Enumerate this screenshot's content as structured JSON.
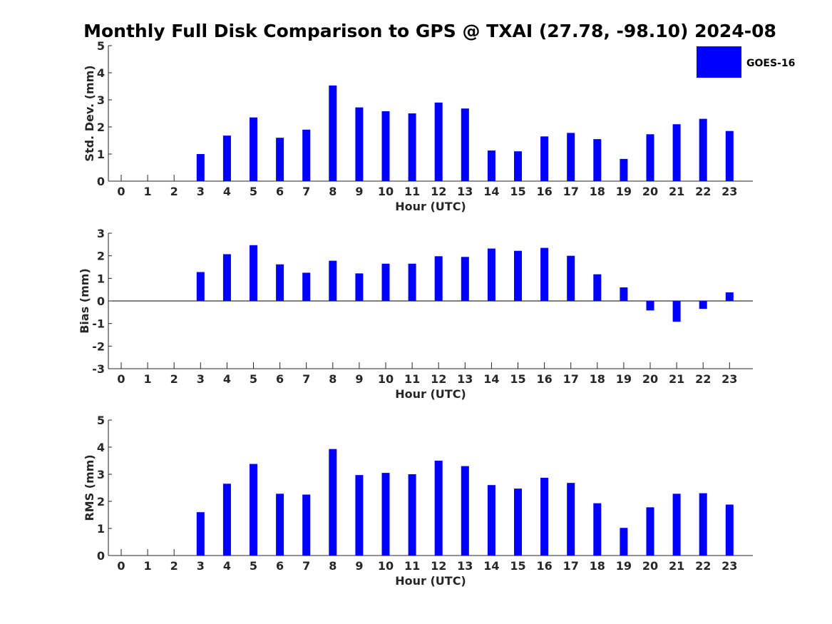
{
  "title": "Monthly Full Disk Comparison to GPS @ TXAI (27.78, -98.10) 2024-08",
  "colors": {
    "bar": "#0000ff",
    "axis": "#262626",
    "background": "#ffffff"
  },
  "legend": {
    "label": "GOES-16",
    "placement": "top-right"
  },
  "chart_data": [
    {
      "type": "bar",
      "ylabel": "Std. Dev. (mm)",
      "xlabel": "Hour (UTC)",
      "ylim": [
        0,
        5
      ],
      "yticks": [
        "0",
        "1",
        "2",
        "3",
        "4",
        "5"
      ],
      "categories": [
        "0",
        "1",
        "2",
        "3",
        "4",
        "5",
        "6",
        "7",
        "8",
        "9",
        "10",
        "11",
        "12",
        "13",
        "14",
        "15",
        "16",
        "17",
        "18",
        "19",
        "20",
        "21",
        "22",
        "23"
      ],
      "series": [
        {
          "name": "GOES-16",
          "values": [
            null,
            null,
            null,
            1.0,
            1.68,
            2.35,
            1.6,
            1.9,
            3.53,
            2.72,
            2.58,
            2.5,
            2.9,
            2.68,
            1.13,
            1.1,
            1.65,
            1.78,
            1.55,
            0.82,
            1.73,
            2.1,
            2.3,
            1.85
          ]
        }
      ]
    },
    {
      "type": "bar",
      "ylabel": "Bias (mm)",
      "xlabel": "Hour (UTC)",
      "ylim": [
        -3,
        3
      ],
      "yticks": [
        "-3",
        "-2",
        "-1",
        "0",
        "1",
        "2",
        "3"
      ],
      "categories": [
        "0",
        "1",
        "2",
        "3",
        "4",
        "5",
        "6",
        "7",
        "8",
        "9",
        "10",
        "11",
        "12",
        "13",
        "14",
        "15",
        "16",
        "17",
        "18",
        "19",
        "20",
        "21",
        "22",
        "23"
      ],
      "series": [
        {
          "name": "GOES-16",
          "values": [
            null,
            null,
            null,
            1.28,
            2.07,
            2.47,
            1.62,
            1.25,
            1.78,
            1.22,
            1.65,
            1.65,
            1.98,
            1.95,
            2.32,
            2.22,
            2.35,
            2.0,
            1.18,
            0.6,
            -0.42,
            -0.92,
            -0.35,
            0.38
          ]
        }
      ]
    },
    {
      "type": "bar",
      "ylabel": "RMS (mm)",
      "xlabel": "Hour (UTC)",
      "ylim": [
        0,
        5
      ],
      "yticks": [
        "0",
        "1",
        "2",
        "3",
        "4",
        "5"
      ],
      "categories": [
        "0",
        "1",
        "2",
        "3",
        "4",
        "5",
        "6",
        "7",
        "8",
        "9",
        "10",
        "11",
        "12",
        "13",
        "14",
        "15",
        "16",
        "17",
        "18",
        "19",
        "20",
        "21",
        "22",
        "23"
      ],
      "series": [
        {
          "name": "GOES-16",
          "values": [
            null,
            null,
            null,
            1.6,
            2.65,
            3.38,
            2.28,
            2.25,
            3.93,
            2.97,
            3.05,
            3.0,
            3.5,
            3.3,
            2.6,
            2.47,
            2.87,
            2.68,
            1.93,
            1.02,
            1.78,
            2.28,
            2.3,
            1.88
          ]
        }
      ]
    }
  ]
}
